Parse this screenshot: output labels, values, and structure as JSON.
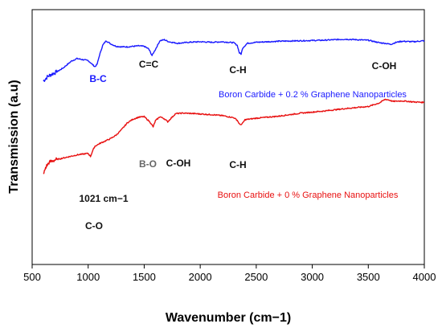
{
  "chart_data": {
    "type": "line",
    "title": "",
    "xlabel": "Wavenumber (cm−1)",
    "ylabel": "Transmission (a.u)",
    "xlim": [
      500,
      4000
    ],
    "x_ticks": [
      "500",
      "1000",
      "1500",
      "2000",
      "2500",
      "3000",
      "3500",
      "4000"
    ],
    "y_ticks_shown": false,
    "grid": false,
    "series": [
      {
        "name": "Boron Carbide + 0.2 % Graphene Nanoparticles",
        "color": "#1a1aff",
        "x": [
          600,
          640,
          680,
          720,
          780,
          850,
          900,
          950,
          1000,
          1030,
          1060,
          1080,
          1100,
          1130,
          1160,
          1200,
          1250,
          1300,
          1350,
          1400,
          1450,
          1500,
          1540,
          1570,
          1600,
          1640,
          1680,
          1720,
          1800,
          1900,
          2000,
          2100,
          2200,
          2300,
          2330,
          2350,
          2365,
          2380,
          2420,
          2500,
          2700,
          2900,
          3100,
          3300,
          3500,
          3600,
          3650,
          3700,
          3750,
          3800,
          3900,
          4000
        ],
        "y": [
          72.0,
          73.8,
          74.8,
          75.6,
          77.2,
          79.8,
          80.8,
          80.4,
          80.0,
          78.8,
          77.6,
          78.6,
          82.0,
          86.0,
          87.8,
          86.6,
          85.6,
          85.4,
          85.4,
          85.6,
          85.8,
          85.6,
          84.6,
          82.0,
          84.4,
          87.8,
          88.2,
          87.4,
          86.8,
          87.2,
          87.4,
          87.2,
          87.4,
          87.0,
          86.0,
          83.0,
          82.6,
          85.0,
          86.8,
          87.2,
          87.6,
          87.8,
          88.0,
          88.4,
          88.0,
          87.0,
          86.8,
          86.4,
          87.2,
          87.6,
          87.4,
          87.8
        ]
      },
      {
        "name": "Boron Carbide + 0 % Graphene Nanoparticles",
        "color": "#e81010",
        "x": [
          600,
          620,
          650,
          700,
          800,
          900,
          1000,
          1021,
          1040,
          1060,
          1100,
          1150,
          1200,
          1250,
          1300,
          1350,
          1400,
          1450,
          1500,
          1550,
          1580,
          1600,
          1640,
          1680,
          1710,
          1740,
          1780,
          1850,
          1950,
          2100,
          2200,
          2300,
          2330,
          2355,
          2375,
          2400,
          2500,
          2700,
          2900,
          3100,
          3300,
          3500,
          3600,
          3650,
          3680,
          3720,
          3800,
          3900,
          4000
        ],
        "y": [
          35.0,
          38.0,
          40.0,
          41.0,
          42.0,
          43.0,
          43.6,
          42.4,
          44.6,
          46.4,
          47.4,
          48.4,
          49.4,
          50.8,
          53.0,
          55.6,
          57.0,
          57.8,
          58.0,
          56.0,
          54.0,
          56.4,
          58.0,
          57.2,
          56.0,
          57.4,
          59.2,
          59.4,
          59.2,
          58.8,
          58.4,
          57.6,
          56.6,
          54.8,
          55.2,
          56.8,
          57.4,
          58.2,
          59.4,
          60.2,
          61.2,
          62.0,
          63.4,
          64.8,
          64.6,
          64.0,
          64.2,
          63.8,
          63.6
        ]
      }
    ],
    "ylim": [
      0,
      100
    ],
    "annotations": [
      {
        "text": "B-C",
        "color": "#1a1aff"
      },
      {
        "text": "C=C",
        "color": "#111111"
      },
      {
        "text": "C-H",
        "color": "#111111"
      },
      {
        "text": "C-OH",
        "color": "#111111"
      },
      {
        "text": "B-O",
        "color": "#666666"
      },
      {
        "text": "C-OH",
        "color": "#111111"
      },
      {
        "text": "C-H",
        "color": "#111111"
      },
      {
        "text": "1021 cm−1",
        "color": "#111111"
      },
      {
        "text": "C-O",
        "color": "#111111"
      }
    ],
    "legend_placement": "in-plot, beside each curve"
  }
}
